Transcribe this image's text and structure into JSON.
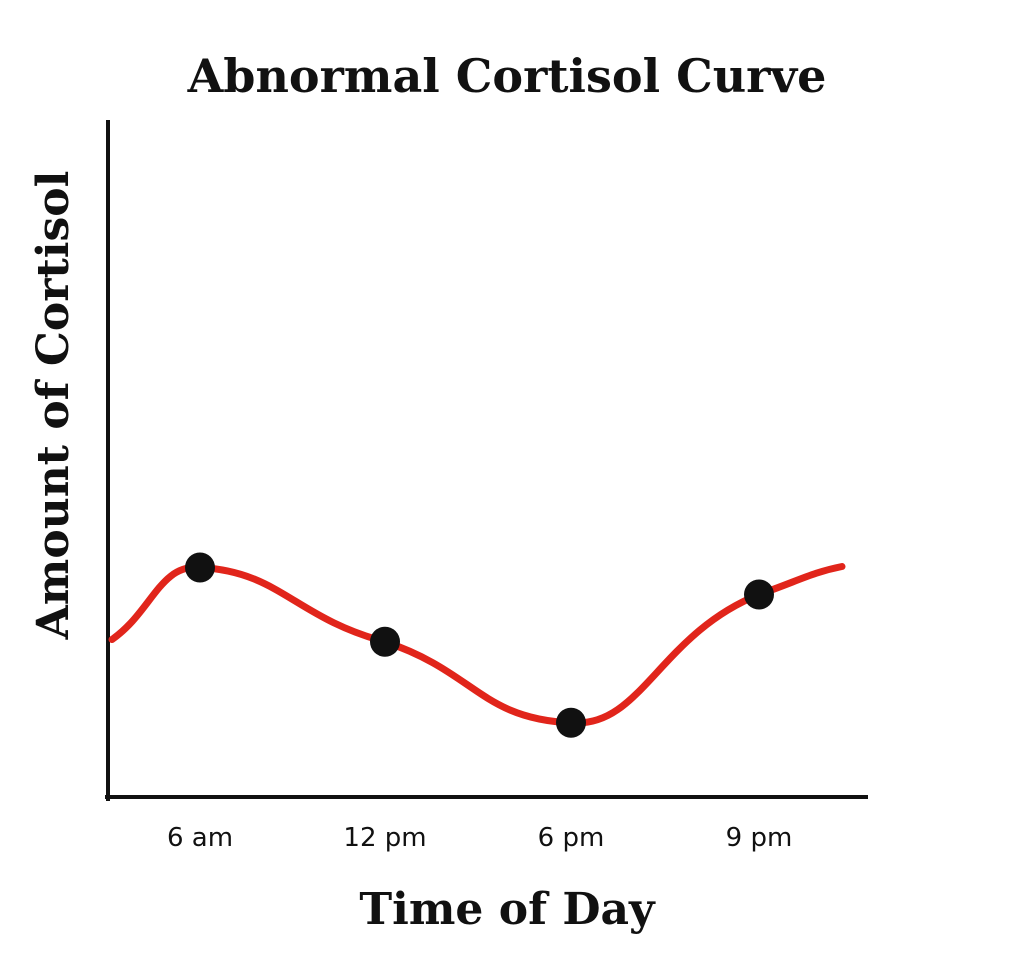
{
  "chart_data": {
    "type": "line",
    "title": "Abnormal Cortisol Curve",
    "xlabel": "Time of Day",
    "ylabel": "Amount of Cortisol",
    "categories": [
      "6 am",
      "12 pm",
      "6 pm",
      "9 pm"
    ],
    "series": [
      {
        "values": [
          0.34,
          0.23,
          0.11,
          0.3
        ]
      }
    ],
    "ylim": [
      0,
      1
    ],
    "grid": false,
    "y_ticks_shown": false,
    "colors": {
      "line": "#e1251b",
      "points": "#111111",
      "axis": "#111111",
      "text": "#111111"
    }
  }
}
